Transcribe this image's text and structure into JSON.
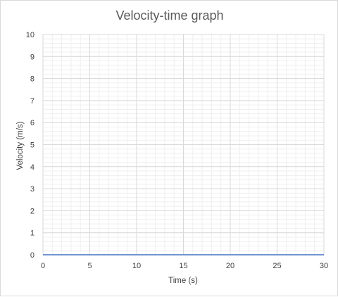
{
  "chart_data": {
    "type": "line",
    "title": "Velocity-time graph",
    "xlabel": "Time (s)",
    "ylabel": "Velocity (m/s)",
    "xlim": [
      0,
      30
    ],
    "ylim": [
      0,
      10
    ],
    "x_ticks": [
      0,
      5,
      10,
      15,
      20,
      25,
      30
    ],
    "y_ticks": [
      0,
      1,
      2,
      3,
      4,
      5,
      6,
      7,
      8,
      9,
      10
    ],
    "grid": true,
    "minor_grid": true,
    "series": [
      {
        "x": [
          0,
          30
        ],
        "values": [
          0,
          0
        ],
        "color": "#4472c4"
      }
    ],
    "colors": {
      "major_grid": "#d9d9d9",
      "minor_grid": "#efefef",
      "series_line": "#4472c4"
    }
  }
}
